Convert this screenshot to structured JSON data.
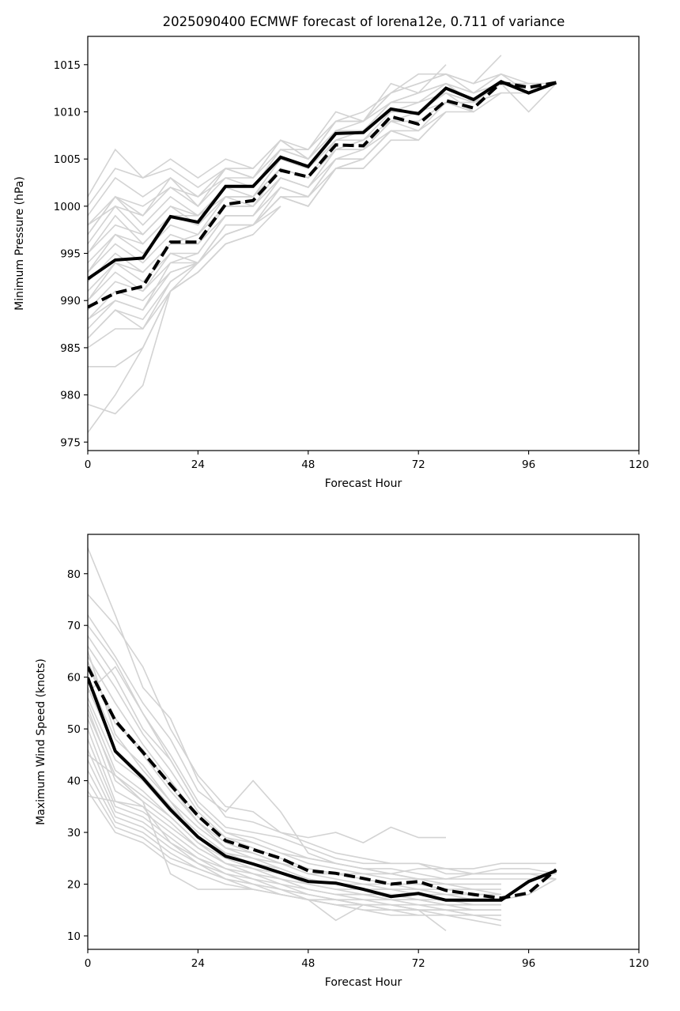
{
  "chart_data": [
    {
      "type": "line",
      "title": "2025090400 ECMWF forecast of lorena12e, 0.711 of variance",
      "xlabel": "Forecast Hour",
      "ylabel": "Minimum Pressure (hPa)",
      "xlim": [
        0,
        120
      ],
      "ylim": [
        974.1,
        1018
      ],
      "xticks": [
        0,
        24,
        48,
        72,
        96,
        120
      ],
      "yticks": [
        975,
        980,
        985,
        990,
        995,
        1000,
        1005,
        1010,
        1015
      ],
      "grid": false,
      "x": [
        0,
        6,
        12,
        18,
        24,
        30,
        36,
        42,
        48,
        54,
        60,
        66,
        72,
        78,
        84,
        90,
        96,
        102
      ],
      "series": [
        {
          "name": "mean (solid)",
          "style": "solid",
          "color": "#000000",
          "values": [
            992.3,
            994.3,
            994.5,
            998.9,
            998.3,
            1002.1,
            1002.1,
            1005.2,
            1004.2,
            1007.7,
            1007.8,
            1010.3,
            1009.8,
            1012.5,
            1011.3,
            1013.2,
            1012.0,
            1013.1
          ]
        },
        {
          "name": "mean (dashed)",
          "style": "dashed",
          "color": "#000000",
          "values": [
            989.3,
            990.8,
            991.5,
            996.2,
            996.2,
            1000.2,
            1000.6,
            1003.8,
            1003.1,
            1006.5,
            1006.4,
            1009.5,
            1008.7,
            1011.2,
            1010.4,
            1013.1,
            1012.6,
            1013.1
          ]
        }
      ],
      "members_color": "#d3d3d3",
      "members": [
        [
          1001,
          1006,
          1003,
          1005,
          1003,
          1005,
          1004,
          1007,
          1006,
          1010,
          1009,
          1013,
          1012,
          1015,
          null,
          null,
          null,
          null
        ],
        [
          1000,
          1004,
          1003,
          1004,
          1002,
          1004,
          1004,
          1007,
          1005,
          1009,
          1010,
          1012,
          1014,
          1014,
          1013,
          1016,
          null,
          null
        ],
        [
          999,
          1003,
          1001,
          1003,
          1001,
          1003,
          1003,
          1006,
          1006,
          1009,
          1009,
          1012,
          1013,
          1014,
          1012,
          1014,
          1013,
          1013
        ],
        [
          998,
          1001,
          1000,
          1002,
          1000,
          1003,
          1002,
          1006,
          1005,
          1008,
          1009,
          1011,
          1012,
          1013,
          1012,
          1013,
          1012,
          1013
        ],
        [
          997,
          1001,
          998,
          1001,
          999,
          1002,
          1002,
          1005,
          1004,
          1008,
          1008,
          1011,
          1011,
          1013,
          1011,
          1013,
          1010,
          1013
        ],
        [
          996,
          1000,
          997,
          1000,
          998,
          1002,
          1001,
          1005,
          1004,
          1007,
          1008,
          1010,
          1010,
          1012,
          1011,
          1012,
          1012,
          1013
        ],
        [
          995,
          999,
          996,
          999,
          998,
          1001,
          1001,
          1004,
          1003,
          1006,
          1007,
          1010,
          1010,
          1012,
          1010,
          1012,
          null,
          null
        ],
        [
          994,
          997,
          995,
          998,
          997,
          1001,
          1000,
          1004,
          1003,
          1006,
          1007,
          1009,
          1009,
          1011,
          1010,
          null,
          null,
          null
        ],
        [
          993,
          996,
          994,
          997,
          996,
          1000,
          1000,
          1003,
          1002,
          1006,
          1006,
          1009,
          1008,
          1011,
          1010,
          null,
          null,
          null
        ],
        [
          992,
          995,
          993,
          996,
          996,
          999,
          999,
          1003,
          1002,
          1005,
          1006,
          1008,
          1008,
          1010,
          1010,
          null,
          null,
          null
        ],
        [
          991,
          994,
          992,
          995,
          995,
          999,
          999,
          1002,
          1001,
          1005,
          1005,
          1008,
          1007,
          1010,
          null,
          null,
          null,
          null
        ],
        [
          990,
          993,
          991,
          995,
          994,
          998,
          998,
          1002,
          1001,
          1004,
          1005,
          1008,
          1007,
          1010,
          null,
          null,
          null,
          null
        ],
        [
          989,
          992,
          991,
          994,
          994,
          998,
          998,
          1001,
          1000,
          1004,
          1004,
          1007,
          1007,
          null,
          null,
          null,
          null,
          null
        ],
        [
          988,
          991,
          990,
          993,
          994,
          997,
          998,
          1001,
          1000,
          1004,
          1004,
          1007,
          null,
          null,
          null,
          null,
          null,
          null
        ],
        [
          987,
          990,
          989,
          993,
          994,
          997,
          998,
          1001,
          1000,
          1004,
          1005,
          1008,
          null,
          null,
          null,
          null,
          null,
          null
        ],
        [
          986,
          989,
          988,
          992,
          994,
          997,
          998,
          1000,
          null,
          null,
          null,
          null,
          null,
          null,
          null,
          null,
          null,
          null
        ],
        [
          985,
          987,
          987,
          991,
          993,
          996,
          997,
          1000,
          null,
          null,
          null,
          null,
          null,
          null,
          null,
          null,
          null,
          null
        ],
        [
          983,
          983,
          985,
          991,
          993,
          996,
          997,
          null,
          null,
          null,
          null,
          null,
          null,
          null,
          null,
          null,
          null,
          null
        ],
        [
          979,
          978,
          981,
          991,
          993,
          996,
          null,
          null,
          null,
          null,
          null,
          null,
          null,
          null,
          null,
          null,
          null,
          null
        ],
        [
          976,
          980,
          985,
          991,
          994,
          998,
          null,
          null,
          null,
          null,
          null,
          null,
          null,
          null,
          null,
          null,
          null,
          null
        ],
        [
          998,
          1000,
          999,
          1003,
          1000,
          1004,
          1003,
          1007,
          1005,
          1009,
          1009,
          1012,
          1013,
          1014,
          1013,
          1014,
          1012,
          1013
        ],
        [
          997,
          1001,
          999,
          1002,
          1001,
          1004,
          1003,
          1006,
          1005,
          1008,
          1008,
          1011,
          1012,
          1013,
          1012,
          1013,
          1013,
          1013
        ],
        [
          995,
          998,
          997,
          1000,
          999,
          1002,
          1002,
          1005,
          1004,
          1007,
          1008,
          1010,
          1011,
          1012,
          1011,
          1012,
          null,
          null
        ],
        [
          993,
          997,
          996,
          999,
          999,
          1001,
          1001,
          1004,
          1003,
          1007,
          1007,
          1009,
          1010,
          1011,
          1011,
          null,
          null,
          null
        ],
        [
          990,
          994,
          993,
          996,
          997,
          1000,
          1000,
          1003,
          1002,
          1006,
          1006,
          1009,
          1009,
          1011,
          null,
          null,
          null,
          null
        ],
        [
          988,
          990,
          989,
          994,
          995,
          999,
          999,
          1002,
          1001,
          1005,
          1005,
          1008,
          null,
          null,
          null,
          null,
          null,
          null
        ],
        [
          986,
          989,
          987,
          992,
          994,
          998,
          998,
          1001,
          1001,
          null,
          null,
          null,
          null,
          null,
          null,
          null,
          null,
          null
        ]
      ]
    },
    {
      "type": "line",
      "title": "",
      "xlabel": "Forecast Hour",
      "ylabel": "Maximum Wind Speed (knots)",
      "xlim": [
        0,
        120
      ],
      "ylim": [
        7.4,
        87.6
      ],
      "xticks": [
        0,
        24,
        48,
        72,
        96,
        120
      ],
      "yticks": [
        10,
        20,
        30,
        40,
        50,
        60,
        70,
        80
      ],
      "grid": false,
      "x": [
        0,
        6,
        12,
        18,
        24,
        30,
        36,
        42,
        48,
        54,
        60,
        66,
        72,
        78,
        84,
        90,
        96,
        102
      ],
      "series": [
        {
          "name": "mean (solid)",
          "style": "solid",
          "color": "#000000",
          "values": [
            59.9,
            45.7,
            40.5,
            34.4,
            29.1,
            25.4,
            23.9,
            22.2,
            20.5,
            20.2,
            19.0,
            17.6,
            18.2,
            16.9,
            16.9,
            16.9,
            20.5,
            22.6
          ]
        },
        {
          "name": "mean (dashed)",
          "style": "dashed",
          "color": "#000000",
          "values": [
            62.0,
            51.6,
            45.5,
            39.2,
            33.2,
            28.4,
            26.7,
            25.0,
            22.6,
            22.1,
            21.1,
            20.0,
            20.5,
            18.8,
            18.0,
            17.3,
            18.3,
            22.8
          ]
        }
      ],
      "members_color": "#d3d3d3",
      "members": [
        [
          85,
          72,
          58,
          52,
          40,
          33,
          32,
          30,
          28,
          26,
          25,
          24,
          24,
          23,
          22,
          22,
          22,
          22
        ],
        [
          76,
          70,
          62,
          50,
          41,
          35,
          34,
          30,
          29,
          30,
          28,
          31,
          29,
          29,
          null,
          null,
          null,
          null
        ],
        [
          72,
          64,
          55,
          48,
          38,
          34,
          40,
          34,
          26,
          24,
          23,
          22,
          23,
          23,
          23,
          24,
          24,
          24
        ],
        [
          70,
          63,
          53,
          45,
          36,
          31,
          30,
          29,
          27,
          25,
          24,
          24,
          24,
          22,
          22,
          23,
          23,
          22
        ],
        [
          68,
          60,
          50,
          44,
          35,
          30,
          29,
          27,
          25,
          24,
          23,
          23,
          22,
          21,
          22,
          22,
          22,
          21
        ],
        [
          66,
          58,
          49,
          42,
          34,
          29,
          28,
          26,
          24,
          23,
          22,
          22,
          21,
          21,
          21,
          21,
          21,
          21
        ],
        [
          64,
          55,
          47,
          40,
          33,
          29,
          27,
          25,
          23,
          22,
          22,
          21,
          21,
          20,
          20,
          20,
          null,
          null
        ],
        [
          62,
          52,
          45,
          38,
          32,
          28,
          26,
          24,
          22,
          22,
          21,
          20,
          20,
          20,
          19,
          19,
          null,
          null
        ],
        [
          60,
          48,
          43,
          36,
          31,
          27,
          25,
          24,
          22,
          21,
          20,
          20,
          19,
          19,
          19,
          18,
          null,
          null
        ],
        [
          58,
          46,
          41,
          35,
          30,
          26,
          24,
          23,
          21,
          20,
          20,
          19,
          19,
          18,
          18,
          18,
          null,
          null
        ],
        [
          56,
          44,
          40,
          34,
          29,
          25,
          24,
          22,
          21,
          20,
          19,
          19,
          18,
          18,
          17,
          17,
          null,
          null
        ],
        [
          55,
          42,
          38,
          33,
          28,
          25,
          23,
          22,
          20,
          19,
          19,
          18,
          18,
          17,
          17,
          17,
          null,
          null
        ],
        [
          54,
          40,
          36,
          32,
          27,
          24,
          23,
          21,
          20,
          19,
          18,
          18,
          17,
          17,
          16,
          16,
          null,
          null
        ],
        [
          52,
          38,
          35,
          31,
          27,
          24,
          22,
          21,
          19,
          18,
          18,
          17,
          17,
          16,
          16,
          16,
          null,
          null
        ],
        [
          50,
          36,
          34,
          30,
          26,
          23,
          22,
          20,
          19,
          18,
          17,
          17,
          16,
          16,
          15,
          15,
          null,
          null
        ],
        [
          48,
          35,
          33,
          29,
          25,
          23,
          21,
          20,
          18,
          17,
          17,
          16,
          16,
          15,
          15,
          15,
          null,
          null
        ],
        [
          46,
          34,
          32,
          28,
          25,
          22,
          21,
          19,
          18,
          17,
          16,
          16,
          15,
          15,
          14,
          14,
          null,
          null
        ],
        [
          44,
          33,
          31,
          27,
          24,
          22,
          20,
          19,
          17,
          16,
          16,
          15,
          15,
          14,
          14,
          13,
          null,
          null
        ],
        [
          42,
          32,
          30,
          26,
          23,
          21,
          20,
          18,
          17,
          16,
          15,
          15,
          14,
          14,
          13,
          12,
          null,
          null
        ],
        [
          40,
          31,
          29,
          25,
          23,
          21,
          19,
          18,
          17,
          13,
          16,
          15,
          15,
          11,
          null,
          null,
          null,
          null
        ],
        [
          38,
          30,
          28,
          24,
          22,
          20,
          19,
          18,
          17,
          16,
          15,
          14,
          14,
          null,
          null,
          null,
          null,
          null
        ],
        [
          37,
          36,
          35,
          28,
          24,
          21,
          20,
          19,
          18,
          17,
          16,
          16,
          15,
          15,
          15,
          15,
          null,
          null
        ],
        [
          45,
          41,
          36,
          22,
          19,
          19,
          19,
          18,
          17,
          17,
          16,
          16,
          15,
          15,
          14,
          14,
          null,
          null
        ],
        [
          57,
          62,
          53,
          44,
          35,
          30,
          28,
          26,
          25,
          24,
          23,
          22,
          21,
          20,
          20,
          20,
          null,
          null
        ],
        [
          65,
          49,
          42,
          36,
          29,
          26,
          25,
          23,
          21,
          20,
          19,
          19,
          18,
          17,
          17,
          17,
          18,
          21
        ],
        [
          63,
          51,
          46,
          39,
          32,
          27,
          26,
          24,
          23,
          22,
          21,
          20,
          20,
          19,
          18,
          18,
          null,
          null
        ],
        [
          53,
          41,
          37,
          33,
          28,
          24,
          22,
          21,
          19,
          18,
          18,
          17,
          17,
          16,
          16,
          16,
          null,
          null
        ]
      ]
    }
  ]
}
